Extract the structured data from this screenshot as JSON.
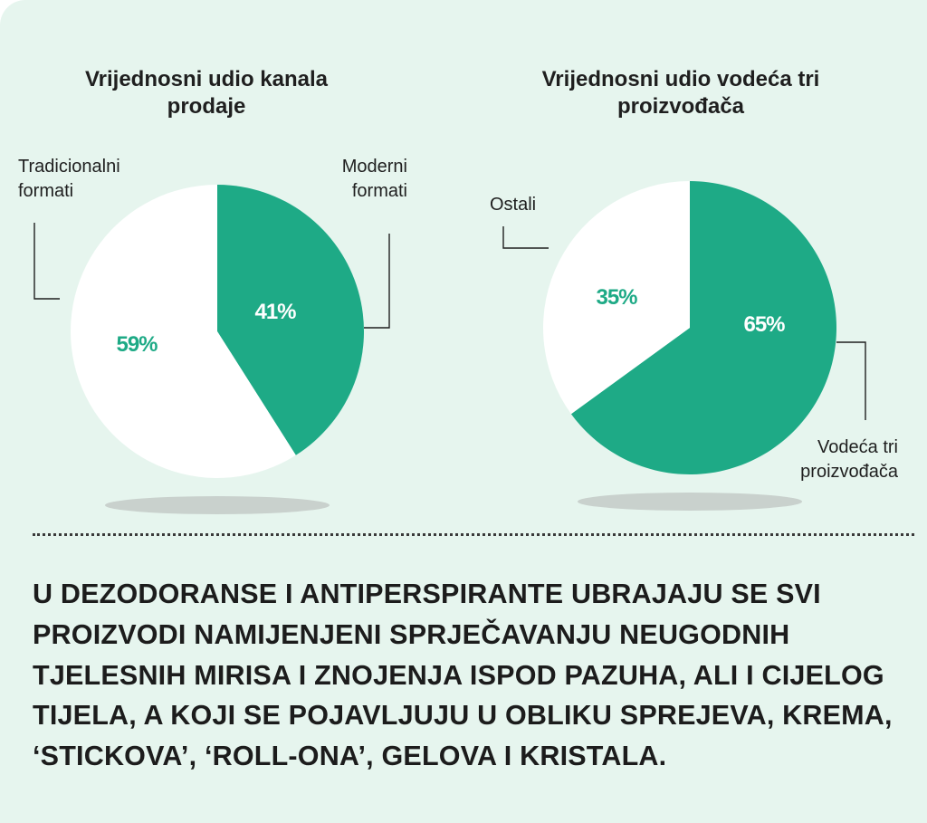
{
  "colors": {
    "accent": "#1eaa86",
    "slice_light": "#ffffff",
    "background": "#e6f5ee",
    "text": "#1f1f1f"
  },
  "chart_data": [
    {
      "type": "pie",
      "title": "Vrijednosni udio kanala prodaje",
      "title_lines": [
        "Vrijednosni udio kanala",
        "prodaje"
      ],
      "slices": [
        {
          "name": "Moderni formati",
          "label_lines": [
            "Moderni",
            "formati"
          ],
          "value": 41,
          "value_label": "41%",
          "color": "#1eaa86"
        },
        {
          "name": "Tradicionalni formati",
          "label_lines": [
            "Tradicionalni",
            "formati"
          ],
          "value": 59,
          "value_label": "59%",
          "color": "#ffffff"
        }
      ]
    },
    {
      "type": "pie",
      "title": "Vrijednosni udio vodeća tri proizvođača",
      "title_lines": [
        "Vrijednosni udio vodeća tri",
        "proizvođača"
      ],
      "slices": [
        {
          "name": "Vodeća tri proizvođača",
          "label_lines": [
            "Vodeća tri",
            "proizvođača"
          ],
          "value": 65,
          "value_label": "65%",
          "color": "#1eaa86"
        },
        {
          "name": "Ostali",
          "label_lines": [
            "Ostali"
          ],
          "value": 35,
          "value_label": "35%",
          "color": "#ffffff"
        }
      ]
    }
  ],
  "body_text": "U DEZODORANSE I ANTIPERSPIRANTE UBRAJAJU SE SVI PROIZVODI NAMIJENJENI SPRJEČAVANJU NEUGODNIH TJELESNIH MIRISA I ZNOJENJA ISPOD PAZUHA, ALI I CIJELOG TIJELA, A KOJI SE POJAVLJUJU U OBLIKU SPREJEVA, KREMA, ‘STICKOVA’, ‘ROLL-ONA’, GELOVA I KRISTALA."
}
